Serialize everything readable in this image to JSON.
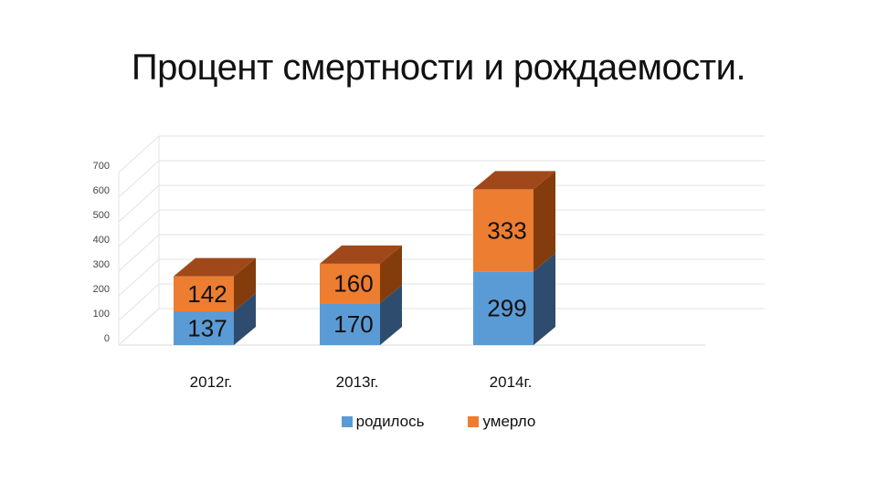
{
  "slide": {
    "title": "Процент смертности и рождаемости."
  },
  "chart_data": {
    "type": "bar",
    "stacked": true,
    "three_d": true,
    "title": "Процент смертности и рождаемости.",
    "categories": [
      "2012г.",
      "2013г.",
      "2014г."
    ],
    "series": [
      {
        "name": "родилось",
        "values": [
          137,
          170,
          299
        ],
        "color": "#5B9BD5",
        "side_color": "#2E4D6E",
        "top_color": "#41719C"
      },
      {
        "name": "умерло",
        "values": [
          142,
          160,
          333
        ],
        "color": "#ED7D31",
        "side_color": "#843C0C",
        "top_color": "#A0481A"
      }
    ],
    "ylim": [
      0,
      700
    ],
    "yticks": [
      0,
      100,
      200,
      300,
      400,
      500,
      600,
      700
    ],
    "xlabel": "",
    "ylabel": "",
    "grid": true,
    "legend_position": "bottom"
  }
}
